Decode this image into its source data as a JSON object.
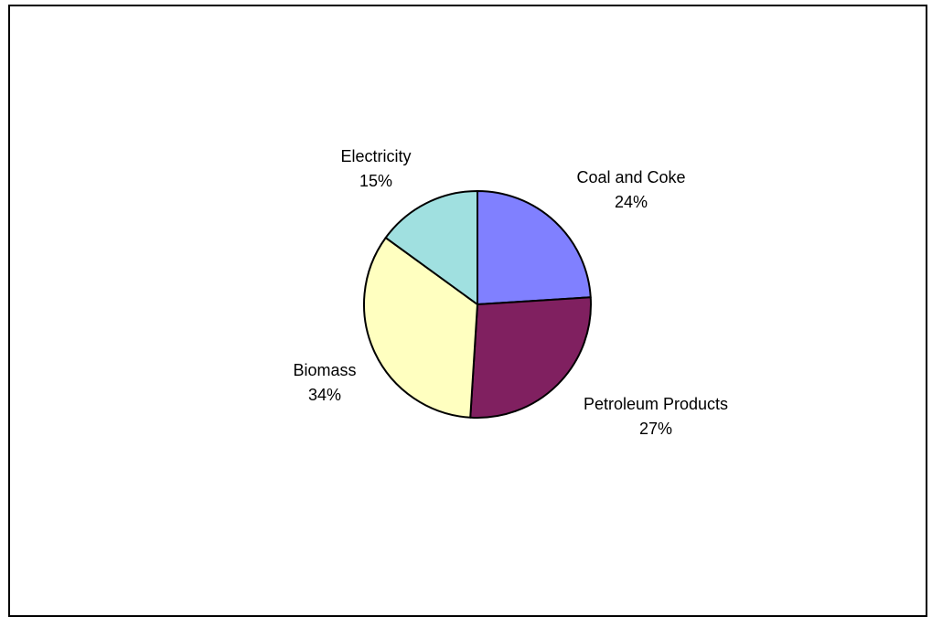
{
  "chart_data": {
    "type": "pie",
    "slices": [
      {
        "name": "Coal and Coke",
        "value": 24,
        "value_label": "24%",
        "color": "#8080FF"
      },
      {
        "name": "Petroleum Products",
        "value": 27,
        "value_label": "27%",
        "color": "#802060"
      },
      {
        "name": "Biomass",
        "value": 34,
        "value_label": "34%",
        "color": "#FFFFC0"
      },
      {
        "name": "Electricity",
        "value": 15,
        "value_label": "15%",
        "color": "#A0E0E0"
      }
    ],
    "start": "12 o'clock",
    "direction": "clockwise",
    "legend": "none"
  }
}
